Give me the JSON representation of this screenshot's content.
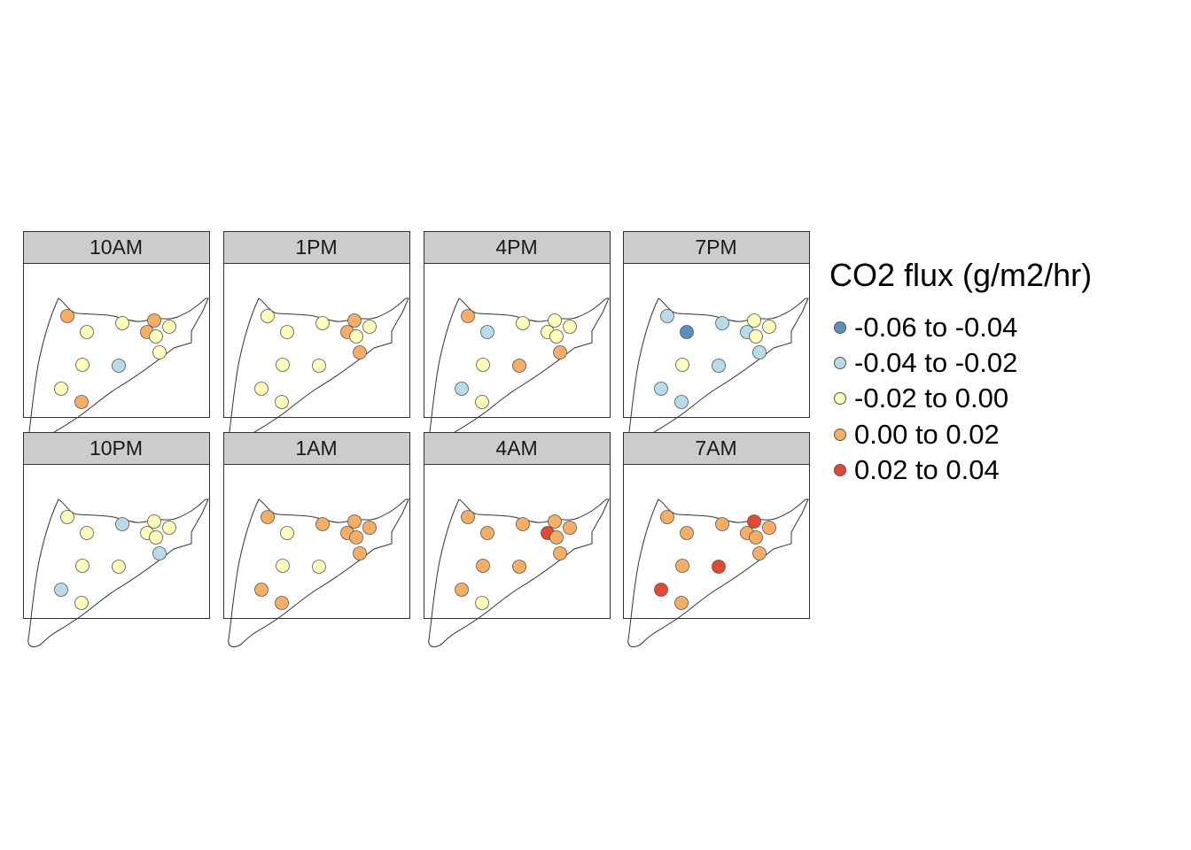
{
  "chart_data": {
    "type": "scatter",
    "legend": {
      "title": "CO2 flux (g/m2/hr)",
      "placement": "right",
      "classes": [
        {
          "label": "-0.06 to -0.04",
          "color": "#5b8dbf"
        },
        {
          "label": "-0.04 to -0.02",
          "color": "#b8dbe9"
        },
        {
          "label": "-0.02 to 0.00",
          "color": "#fffcbc"
        },
        {
          "label": "0.00 to 0.02",
          "color": "#f6ae66"
        },
        {
          "label": "0.02 to 0.04",
          "color": "#e04a33"
        }
      ]
    },
    "panels": [
      {
        "title": "10AM",
        "classes": [
          3,
          2,
          2,
          3,
          3,
          2,
          2,
          2,
          2,
          1,
          2,
          3
        ]
      },
      {
        "title": "1PM",
        "classes": [
          2,
          2,
          2,
          3,
          3,
          2,
          2,
          3,
          2,
          2,
          2,
          2
        ]
      },
      {
        "title": "4PM",
        "classes": [
          3,
          1,
          2,
          2,
          2,
          2,
          2,
          3,
          2,
          3,
          1,
          2
        ]
      },
      {
        "title": "7PM",
        "classes": [
          1,
          0,
          1,
          2,
          1,
          2,
          2,
          1,
          2,
          1,
          1,
          1
        ]
      },
      {
        "title": "10PM",
        "classes": [
          2,
          2,
          1,
          2,
          2,
          2,
          2,
          1,
          2,
          2,
          1,
          2
        ]
      },
      {
        "title": "1AM",
        "classes": [
          3,
          2,
          3,
          3,
          3,
          3,
          3,
          3,
          2,
          2,
          3,
          3
        ]
      },
      {
        "title": "4AM",
        "classes": [
          3,
          3,
          3,
          3,
          4,
          3,
          3,
          3,
          3,
          3,
          3,
          2
        ]
      },
      {
        "title": "7AM",
        "classes": [
          3,
          3,
          3,
          4,
          3,
          3,
          3,
          3,
          3,
          4,
          4,
          3
        ]
      }
    ]
  }
}
